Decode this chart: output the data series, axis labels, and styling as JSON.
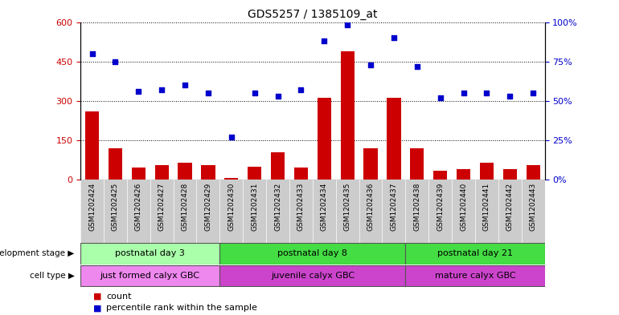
{
  "title": "GDS5257 / 1385109_at",
  "samples": [
    "GSM1202424",
    "GSM1202425",
    "GSM1202426",
    "GSM1202427",
    "GSM1202428",
    "GSM1202429",
    "GSM1202430",
    "GSM1202431",
    "GSM1202432",
    "GSM1202433",
    "GSM1202434",
    "GSM1202435",
    "GSM1202436",
    "GSM1202437",
    "GSM1202438",
    "GSM1202439",
    "GSM1202440",
    "GSM1202441",
    "GSM1202442",
    "GSM1202443"
  ],
  "counts": [
    260,
    120,
    45,
    55,
    65,
    55,
    5,
    50,
    105,
    45,
    310,
    490,
    120,
    310,
    120,
    35,
    40,
    65,
    40,
    55
  ],
  "percentiles": [
    80,
    75,
    56,
    57,
    60,
    55,
    27,
    55,
    53,
    57,
    88,
    98,
    73,
    90,
    72,
    52,
    55,
    55,
    53,
    55
  ],
  "bar_color": "#cc0000",
  "dot_color": "#0000cc",
  "ylim_left": [
    0,
    600
  ],
  "ylim_right": [
    0,
    100
  ],
  "yticks_left": [
    0,
    150,
    300,
    450,
    600
  ],
  "yticks_right": [
    0,
    25,
    50,
    75,
    100
  ],
  "stage_boundaries": [
    {
      "label": "postnatal day 3",
      "start": 0,
      "end": 5,
      "color": "#aaffaa"
    },
    {
      "label": "postnatal day 8",
      "start": 6,
      "end": 13,
      "color": "#44dd44"
    },
    {
      "label": "postnatal day 21",
      "start": 14,
      "end": 19,
      "color": "#44dd44"
    }
  ],
  "cell_boundaries": [
    {
      "label": "just formed calyx GBC",
      "start": 0,
      "end": 5,
      "color": "#ee88ee"
    },
    {
      "label": "juvenile calyx GBC",
      "start": 6,
      "end": 13,
      "color": "#cc44cc"
    },
    {
      "label": "mature calyx GBC",
      "start": 14,
      "end": 19,
      "color": "#cc44cc"
    }
  ],
  "dev_stage_label": "development stage",
  "cell_type_label": "cell type",
  "legend_count_label": "count",
  "legend_percentile_label": "percentile rank within the sample",
  "xtick_bg_color": "#cccccc"
}
